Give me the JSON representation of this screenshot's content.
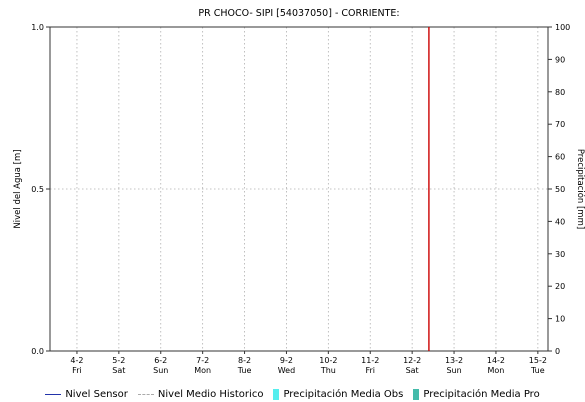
{
  "chart_data": {
    "type": "line",
    "title": "PR CHOCO- SIPI [54037050] - CORRIENTE:",
    "ylabel": "Nivel del Agua [m]",
    "y2label": "Precipitación [mm]",
    "ylim": [
      0.0,
      1.0
    ],
    "y2lim": [
      0,
      100
    ],
    "y_ticks": [
      "0.0",
      "0.5",
      "1.0"
    ],
    "y2_ticks": [
      "0",
      "10",
      "20",
      "30",
      "40",
      "50",
      "60",
      "70",
      "80",
      "90",
      "100"
    ],
    "x_tick_labels": [
      {
        "date": "4-2",
        "day": "Fri"
      },
      {
        "date": "5-2",
        "day": "Sat"
      },
      {
        "date": "6-2",
        "day": "Sun"
      },
      {
        "date": "7-2",
        "day": "Mon"
      },
      {
        "date": "8-2",
        "day": "Tue"
      },
      {
        "date": "9-2",
        "day": "Wed"
      },
      {
        "date": "10-2",
        "day": "Thu"
      },
      {
        "date": "11-2",
        "day": "Fri"
      },
      {
        "date": "12-2",
        "day": "Sat"
      },
      {
        "date": "13-2",
        "day": "Sun"
      },
      {
        "date": "14-2",
        "day": "Mon"
      },
      {
        "date": "15-2",
        "day": "Tue"
      }
    ],
    "marker": {
      "date": "12-2",
      "offset_fraction_of_day": 0.4,
      "color": "#cc0000"
    },
    "grid": true,
    "legend_position": "bottom",
    "series": [
      {
        "name": "Nivel Sensor",
        "color": "#2233aa",
        "style": "solid",
        "values": []
      },
      {
        "name": "Nivel Medio Historico",
        "color": "#aaaaaa",
        "style": "dashed",
        "values": []
      },
      {
        "name": "Precipitación Media Obs",
        "color": "#55eeee",
        "style": "bar",
        "values": []
      },
      {
        "name": "Precipitación Media Pro",
        "color": "#44bbaa",
        "style": "bar",
        "values": []
      }
    ]
  }
}
